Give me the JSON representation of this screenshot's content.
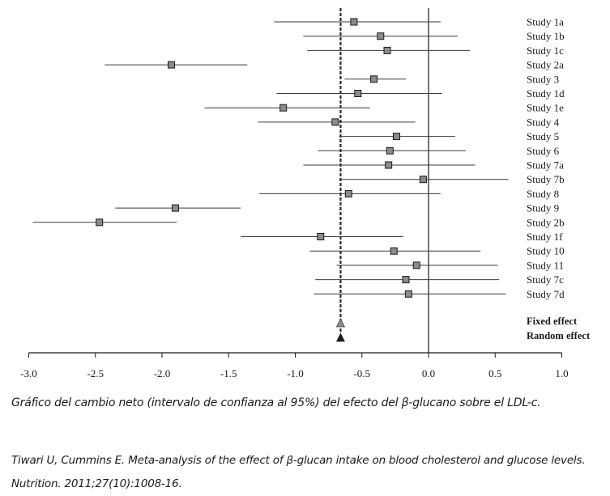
{
  "chart_data": {
    "type": "forest",
    "title": "",
    "xlabel": "",
    "ylabel": "",
    "xlim": [
      -3.0,
      1.0
    ],
    "x_ticks": [
      "-3.0",
      "-2.5",
      "-2.0",
      "-1.5",
      "-1.0",
      "-0.5",
      "0.0",
      "0.5",
      "1.0"
    ],
    "x_tick_values": [
      -3.0,
      -2.5,
      -2.0,
      -1.5,
      -1.0,
      -0.5,
      0.0,
      0.5,
      1.0
    ],
    "grid": false,
    "reference_line": 0.0,
    "pooled_line": -0.66,
    "studies": [
      {
        "label": "Study 1a",
        "estimate": -0.56,
        "ci_low": -1.16,
        "ci_high": 0.09
      },
      {
        "label": "Study 1b",
        "estimate": -0.36,
        "ci_low": -0.94,
        "ci_high": 0.22
      },
      {
        "label": "Study 1c",
        "estimate": -0.31,
        "ci_low": -0.91,
        "ci_high": 0.31
      },
      {
        "label": "Study 2a",
        "estimate": -1.93,
        "ci_low": -2.43,
        "ci_high": -1.36
      },
      {
        "label": "Study 3",
        "estimate": -0.41,
        "ci_low": -0.63,
        "ci_high": -0.17
      },
      {
        "label": "Study 1d",
        "estimate": -0.53,
        "ci_low": -1.14,
        "ci_high": 0.1
      },
      {
        "label": "Study 1e",
        "estimate": -1.09,
        "ci_low": -1.68,
        "ci_high": -0.44
      },
      {
        "label": "Study 4",
        "estimate": -0.7,
        "ci_low": -1.28,
        "ci_high": -0.1
      },
      {
        "label": "Study 5",
        "estimate": -0.24,
        "ci_low": -0.67,
        "ci_high": 0.2
      },
      {
        "label": "Study 6",
        "estimate": -0.29,
        "ci_low": -0.83,
        "ci_high": 0.28
      },
      {
        "label": "Study 7a",
        "estimate": -0.3,
        "ci_low": -0.94,
        "ci_high": 0.35
      },
      {
        "label": "Study 7b",
        "estimate": -0.04,
        "ci_low": -0.67,
        "ci_high": 0.6
      },
      {
        "label": "Study 8",
        "estimate": -0.6,
        "ci_low": -1.27,
        "ci_high": 0.09
      },
      {
        "label": "Study 9",
        "estimate": -1.9,
        "ci_low": -2.35,
        "ci_high": -1.41
      },
      {
        "label": "Study 2b",
        "estimate": -2.47,
        "ci_low": -2.97,
        "ci_high": -1.89
      },
      {
        "label": "Study 1f",
        "estimate": -0.81,
        "ci_low": -1.41,
        "ci_high": -0.19
      },
      {
        "label": "Study 10",
        "estimate": -0.26,
        "ci_low": -0.89,
        "ci_high": 0.39
      },
      {
        "label": "Study 11",
        "estimate": -0.09,
        "ci_low": -0.69,
        "ci_high": 0.52
      },
      {
        "label": "Study 7c",
        "estimate": -0.17,
        "ci_low": -0.85,
        "ci_high": 0.53
      },
      {
        "label": "Study 7d",
        "estimate": -0.15,
        "ci_low": -0.86,
        "ci_high": 0.58
      }
    ],
    "pooled": [
      {
        "label": "Fixed effect",
        "estimate": -0.66,
        "marker": "triangle",
        "color": "#8c8c8c"
      },
      {
        "label": "Random effect",
        "estimate": -0.66,
        "marker": "triangle",
        "color": "#1a1a1a"
      }
    ],
    "colors": {
      "square_fill": "#8c8c8c",
      "square_stroke": "#1a1a1a",
      "line": "#3a3a3a"
    }
  },
  "captions": {
    "main": "Gráfico del cambio neto (intervalo de confianza al 95%) del efecto del β-glucano  sobre el LDL-c.",
    "reference": "Tiwari U, Cummins E. Meta-analysis of the effect of β-glucan intake on blood cholesterol and glucose levels. Nutrition. 2011;27(10):1008-16."
  }
}
